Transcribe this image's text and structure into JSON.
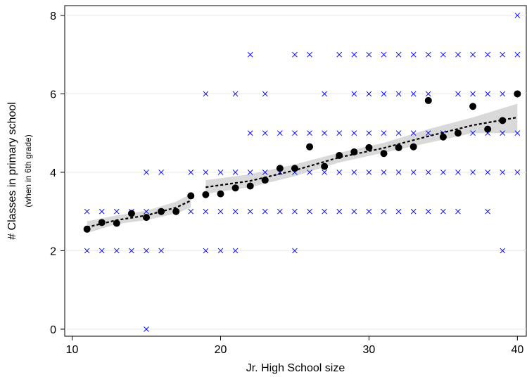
{
  "chart_data": {
    "type": "scatter",
    "xlabel": "Jr. High School size",
    "ylabel": "# Classes in primary school",
    "ylabel_sub": "(when in 6th grade)",
    "xlim": [
      9.5,
      40.6
    ],
    "ylim": [
      -0.18,
      8.25
    ],
    "xticks": [
      10,
      20,
      30,
      40
    ],
    "yticks": [
      0,
      2,
      4,
      6,
      8
    ],
    "grid": true,
    "points": {
      "color": "#0000ff",
      "x": [
        11,
        11,
        12,
        12,
        13,
        13,
        14,
        14,
        15,
        15,
        15,
        15,
        16,
        16,
        16,
        17,
        18,
        18,
        19,
        19,
        19,
        19,
        20,
        20,
        20,
        21,
        21,
        21,
        21,
        22,
        22,
        22,
        22,
        23,
        23,
        23,
        23,
        24,
        24,
        24,
        25,
        25,
        25,
        25,
        25,
        26,
        26,
        26,
        26,
        27,
        27,
        27,
        27,
        28,
        28,
        28,
        28,
        29,
        29,
        29,
        29,
        29,
        30,
        30,
        30,
        30,
        30,
        31,
        31,
        31,
        31,
        31,
        32,
        32,
        32,
        32,
        32,
        33,
        33,
        33,
        33,
        33,
        34,
        34,
        34,
        34,
        34,
        35,
        35,
        35,
        35,
        36,
        36,
        36,
        36,
        37,
        37,
        37,
        37,
        38,
        38,
        38,
        38,
        38,
        39,
        39,
        39,
        39,
        39,
        40,
        40,
        40,
        40,
        40
      ],
      "y": [
        2,
        3,
        2,
        3,
        2,
        3,
        2,
        3,
        0,
        2,
        3,
        4,
        2,
        3,
        4,
        3,
        3,
        4,
        2,
        3,
        4,
        6,
        2,
        3,
        4,
        2,
        3,
        4,
        6,
        3,
        4,
        5,
        7,
        3,
        4,
        5,
        6,
        3,
        4,
        5,
        2,
        3,
        4,
        5,
        7,
        3,
        4,
        5,
        7,
        3,
        4,
        5,
        6,
        3,
        4,
        5,
        7,
        3,
        4,
        5,
        6,
        7,
        3,
        4,
        5,
        6,
        7,
        3,
        4,
        5,
        6,
        7,
        3,
        4,
        5,
        6,
        7,
        3,
        4,
        5,
        6,
        7,
        3,
        4,
        5,
        6,
        7,
        3,
        4,
        5,
        7,
        3,
        4,
        6,
        7,
        4,
        5,
        6,
        7,
        3,
        4,
        5,
        6,
        7,
        2,
        4,
        5,
        6,
        7,
        4,
        5,
        6,
        7,
        8
      ]
    },
    "means": {
      "color": "#000000",
      "x": [
        11,
        12,
        13,
        14,
        15,
        16,
        17,
        18,
        19,
        20,
        21,
        22,
        23,
        24,
        25,
        26,
        27,
        28,
        29,
        30,
        31,
        32,
        33,
        34,
        35,
        36,
        37,
        38,
        39,
        40
      ],
      "y": [
        2.55,
        2.72,
        2.7,
        2.95,
        2.85,
        3.0,
        3.0,
        3.4,
        3.43,
        3.45,
        3.6,
        3.65,
        3.8,
        4.1,
        4.1,
        4.65,
        4.15,
        4.43,
        4.52,
        4.63,
        4.48,
        4.63,
        4.65,
        5.83,
        4.9,
        5.0,
        5.68,
        5.1,
        5.32,
        6.0
      ]
    },
    "band_color": "#d9d9d9",
    "fits": [
      {
        "x": [
          11,
          13,
          15,
          17,
          18
        ],
        "y": [
          2.6,
          2.78,
          2.9,
          3.1,
          3.28
        ],
        "lower": [
          2.45,
          2.68,
          2.78,
          2.95,
          3.1
        ],
        "upper": [
          2.75,
          2.9,
          3.02,
          3.25,
          3.45
        ]
      },
      {
        "x": [
          19,
          22,
          25,
          28,
          31,
          34,
          37,
          40
        ],
        "y": [
          3.62,
          3.78,
          4.05,
          4.38,
          4.62,
          4.92,
          5.2,
          5.4
        ],
        "lower": [
          3.45,
          3.62,
          3.9,
          4.25,
          4.5,
          4.75,
          5.0,
          5.0
        ],
        "upper": [
          3.8,
          3.95,
          4.2,
          4.5,
          4.75,
          5.1,
          5.4,
          5.75
        ]
      }
    ]
  }
}
